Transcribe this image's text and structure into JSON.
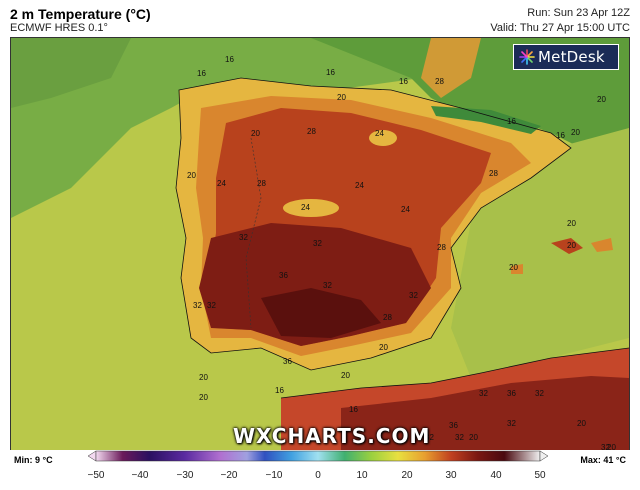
{
  "header": {
    "title": "2 m Temperature (°C)",
    "model": "ECMWF HRES 0.1°",
    "run": "Run: Sun 23 Apr 12Z",
    "valid": "Valid: Thu 27 Apr 15:00 UTC"
  },
  "logo": {
    "text": "MetDesk",
    "icon": "starburst-icon"
  },
  "watermark": "WXCHARTS.COM",
  "footer": {
    "min": "Min: 9 °C",
    "max": "Max: 41 °C",
    "ticks": [
      "−50",
      "−40",
      "−30",
      "−20",
      "−10",
      "0",
      "10",
      "20",
      "30",
      "40",
      "50"
    ]
  },
  "map": {
    "region": "Iberian Peninsula",
    "labels": [
      "16",
      "16",
      "16",
      "16",
      "16",
      "16",
      "20",
      "20",
      "20",
      "20",
      "20",
      "20",
      "20",
      "20",
      "20",
      "20",
      "24",
      "24",
      "24",
      "24",
      "24",
      "28",
      "28",
      "28",
      "28",
      "28",
      "32",
      "32",
      "32",
      "32",
      "32",
      "32",
      "32",
      "32",
      "36",
      "36",
      "36",
      "36",
      "16",
      "16",
      "20",
      "20",
      "20",
      "20",
      "20",
      "28",
      "32",
      "32",
      "32",
      "32"
    ]
  },
  "colors": {
    "sea": "#c9cc4a",
    "cool_land": "#6aa844",
    "warm": "#e8a030",
    "hot": "#b83a1a",
    "very_hot": "#6e1712",
    "logo_bg": "#1b2b57"
  }
}
